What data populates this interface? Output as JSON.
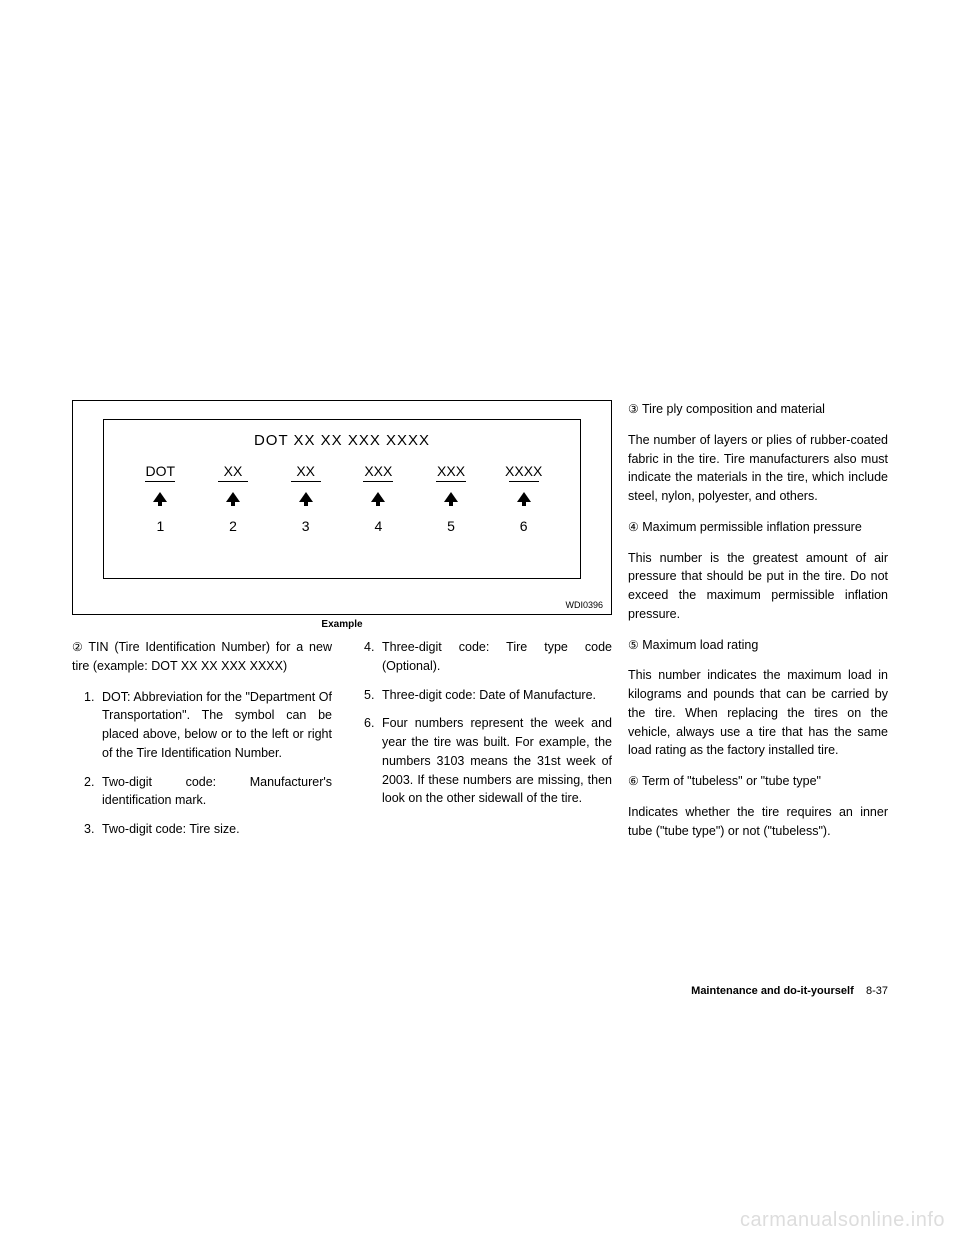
{
  "diagram": {
    "title": "DOT  XX  XX  XXX  XXXX",
    "items": [
      {
        "label": "DOT",
        "number": "1"
      },
      {
        "label": "XX",
        "number": "2"
      },
      {
        "label": "XX",
        "number": "3"
      },
      {
        "label": "XXX",
        "number": "4"
      },
      {
        "label": "XXX",
        "number": "5"
      },
      {
        "label": "XXXX",
        "number": "6"
      }
    ],
    "code": "WDI0396",
    "caption": "Example"
  },
  "col1": {
    "intro_num": "②",
    "intro": "TIN (Tire Identification Number) for a new tire (example: DOT XX XX XXX XXXX)",
    "items": [
      {
        "n": "1.",
        "t": "DOT: Abbreviation for the \"Department Of Transportation\". The symbol can be placed above, below or to the left or right of the Tire Identification Number."
      },
      {
        "n": "2.",
        "t": "Two-digit code: Manufacturer's identification mark."
      },
      {
        "n": "3.",
        "t": "Two-digit code: Tire size."
      }
    ]
  },
  "col2": {
    "items": [
      {
        "n": "4.",
        "t": "Three-digit code: Tire type code (Optional)."
      },
      {
        "n": "5.",
        "t": "Three-digit code: Date of Manufacture."
      },
      {
        "n": "6.",
        "t": "Four numbers represent the week and year the tire was built. For example, the numbers 3103 means the 31st week of 2003. If these numbers are missing, then look on the other sidewall of the tire."
      }
    ]
  },
  "col3": {
    "p1_num": "③",
    "p1_title": "Tire ply composition and material",
    "p1_body": "The number of layers or plies of rubber-coated fabric in the tire. Tire manufacturers also must indicate the materials in the tire, which include steel, nylon, polyester, and others.",
    "p2_num": "④",
    "p2_title": "Maximum permissible inflation pressure",
    "p2_body": "This number is the greatest amount of air pressure that should be put in the tire. Do not exceed the maximum permissible inflation pressure.",
    "p3_num": "⑤",
    "p3_title": "Maximum load rating",
    "p3_body": "This number indicates the maximum load in kilograms and pounds that can be carried by the tire. When replacing the tires on the vehicle, always use a tire that has the same load rating as the factory installed tire.",
    "p4_num": "⑥",
    "p4_title": "Term of \"tubeless\" or \"tube type\"",
    "p4_body": "Indicates whether the tire requires an inner tube (\"tube type\") or not (\"tubeless\")."
  },
  "footer": {
    "section": "Maintenance and do-it-yourself",
    "page": "8-37"
  },
  "watermark": "carmanualsonline.info"
}
